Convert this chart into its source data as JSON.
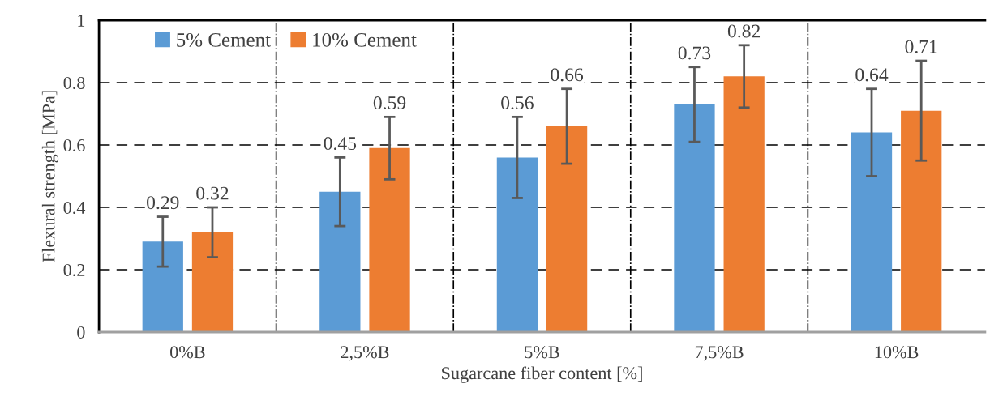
{
  "chart_data": {
    "type": "bar",
    "xlabel": "Sugarcane fiber content [%]",
    "ylabel": "Flexural strength [MPa]",
    "categories": [
      "0%B",
      "2,5%B",
      "5%B",
      "7,5%B",
      "10%B"
    ],
    "series": [
      {
        "name": "5% Cement",
        "color": "#5b9bd5",
        "values": [
          0.29,
          0.45,
          0.56,
          0.73,
          0.64
        ],
        "errors": [
          0.08,
          0.11,
          0.13,
          0.12,
          0.14
        ]
      },
      {
        "name": "10% Cement",
        "color": "#ed7d31",
        "values": [
          0.32,
          0.59,
          0.66,
          0.82,
          0.71
        ],
        "errors": [
          0.08,
          0.1,
          0.12,
          0.1,
          0.16
        ]
      }
    ],
    "ylim": [
      0,
      1
    ],
    "yticks": [
      0,
      0.2,
      0.4,
      0.6,
      0.8,
      1
    ],
    "data_labels": true,
    "grid": true,
    "legend": "top left"
  }
}
